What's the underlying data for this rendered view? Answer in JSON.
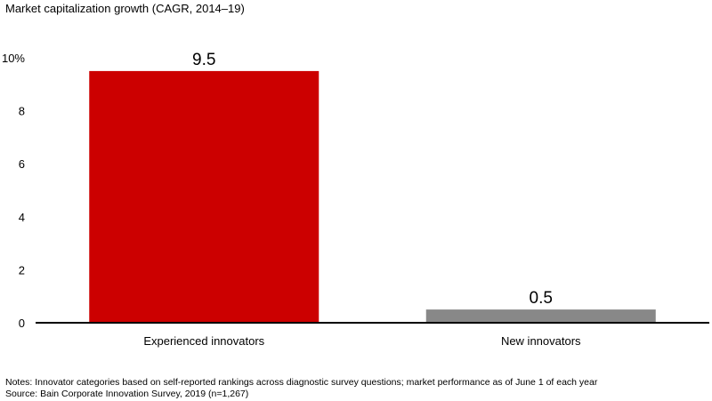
{
  "chart_data": {
    "type": "bar",
    "title": "Market capitalization growth (CAGR, 2014–19)",
    "categories": [
      "Experienced innovators",
      "New innovators"
    ],
    "values": [
      9.5,
      0.5
    ],
    "data_labels": [
      "9.5",
      "0.5"
    ],
    "ylim": [
      0,
      10
    ],
    "yticks": [
      0,
      2,
      4,
      6,
      8,
      10
    ],
    "ytick_labels": [
      "0",
      "2",
      "4",
      "6",
      "8",
      "10%"
    ],
    "xlabel": "",
    "ylabel": "",
    "grid": false,
    "legend": "none",
    "bar_colors": [
      "#cc0000",
      "#888888"
    ],
    "axis_color": "#000000"
  },
  "notes": "Notes: Innovator categories based on self-reported rankings across diagnostic survey questions; market performance as of June 1 of each year",
  "source": "Source: Bain Corporate Innovation Survey, 2019 (n=1,267)"
}
